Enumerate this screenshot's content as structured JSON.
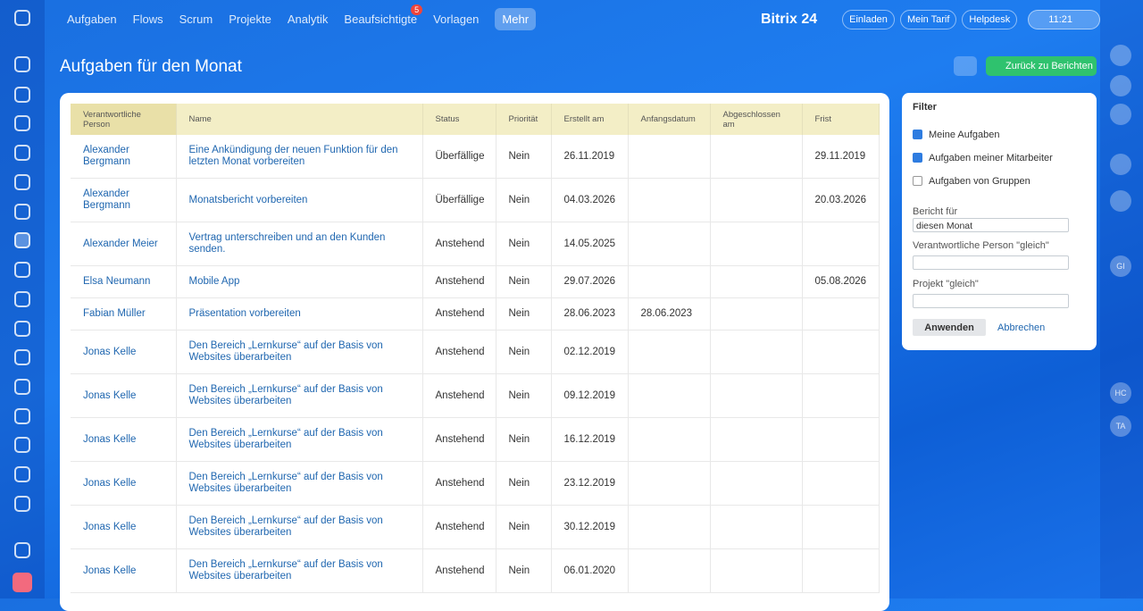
{
  "topbar": {
    "nav": [
      "Aufgaben",
      "Flows",
      "Scrum",
      "Projekte",
      "Analytik",
      "Beaufsichtigte",
      "Vorlagen",
      "Mehr"
    ],
    "badge": "5",
    "logo": "Bitrix 24",
    "buttons": [
      "Einladen",
      "Mein Tarif",
      "Helpdesk"
    ],
    "clock": "11:21"
  },
  "header": {
    "title": "Aufgaben für den Monat",
    "back": "Zurück zu Berichten"
  },
  "table": {
    "columns": [
      "Verantwortliche Person",
      "Name",
      "Status",
      "Priorität",
      "Erstellt am",
      "Anfangsdatum",
      "Abgeschlossen am",
      "Frist"
    ],
    "rows": [
      [
        "Alexander Bergmann",
        "Eine Ankündigung der neuen Funktion für den letzten Monat vorbereiten",
        "Überfällige",
        "Nein",
        "26.11.2019",
        null,
        null,
        "29.11.2019"
      ],
      [
        "Alexander Bergmann",
        "Monatsbericht vorbereiten",
        "Überfällige",
        "Nein",
        "04.03.2026",
        null,
        null,
        "20.03.2026"
      ],
      [
        "Alexander Meier",
        "Vertrag unterschreiben und an den Kunden senden.",
        "Anstehend",
        "Nein",
        "14.05.2025",
        null,
        null,
        null
      ],
      [
        "Elsa Neumann",
        "Mobile App",
        "Anstehend",
        "Nein",
        "29.07.2026",
        null,
        null,
        "05.08.2026"
      ],
      [
        "Fabian Müller",
        "Präsentation vorbereiten",
        "Anstehend",
        "Nein",
        "28.06.2023",
        "28.06.2023",
        null,
        null
      ],
      [
        "Jonas Kelle",
        "Den Bereich „Lernkurse“ auf der Basis von Websites überarbeiten",
        "Anstehend",
        "Nein",
        "02.12.2019",
        null,
        null,
        null
      ],
      [
        "Jonas Kelle",
        "Den Bereich „Lernkurse“ auf der Basis von Websites überarbeiten",
        "Anstehend",
        "Nein",
        "09.12.2019",
        null,
        null,
        null
      ],
      [
        "Jonas Kelle",
        "Den Bereich „Lernkurse“ auf der Basis von Websites überarbeiten",
        "Anstehend",
        "Nein",
        "16.12.2019",
        null,
        null,
        null
      ],
      [
        "Jonas Kelle",
        "Den Bereich „Lernkurse“ auf der Basis von Websites überarbeiten",
        "Anstehend",
        "Nein",
        "23.12.2019",
        null,
        null,
        null
      ],
      [
        "Jonas Kelle",
        "Den Bereich „Lernkurse“ auf der Basis von Websites überarbeiten",
        "Anstehend",
        "Nein",
        "30.12.2019",
        null,
        null,
        null
      ],
      [
        "Jonas Kelle",
        "Den Bereich „Lernkurse“ auf der Basis von Websites überarbeiten",
        "Anstehend",
        "Nein",
        "06.01.2020",
        null,
        null,
        null
      ]
    ]
  },
  "filter": {
    "title": "Filter",
    "checks": [
      {
        "label": "Meine Aufgaben",
        "checked": true
      },
      {
        "label": "Aufgaben meiner Mitarbeiter",
        "checked": true
      },
      {
        "label": "Aufgaben von Gruppen",
        "checked": false
      }
    ],
    "report_label": "Bericht für",
    "report_value": "diesen Monat",
    "person_label": "Verantwortliche Person \"gleich\"",
    "project_label": "Projekt \"gleich\"",
    "apply": "Anwenden",
    "cancel": "Abbrechen"
  },
  "right_sidebar": [
    "GI",
    "HC",
    "TA"
  ]
}
